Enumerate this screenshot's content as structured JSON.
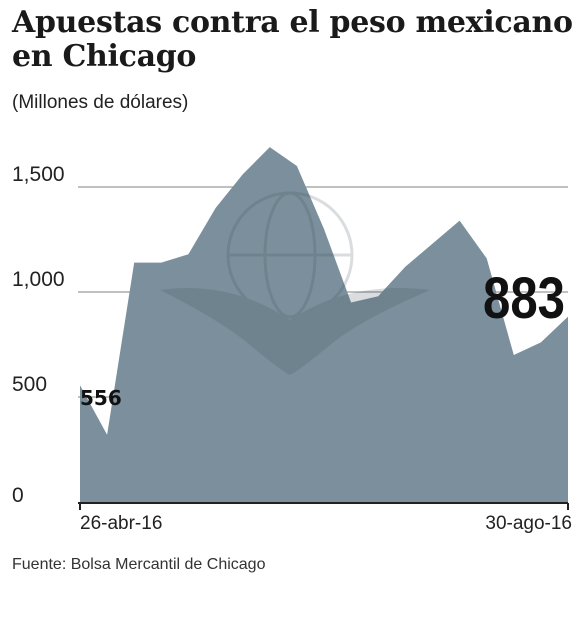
{
  "title": "Apuestas contra el peso mexicano en Chicago",
  "subtitle": "(Millones de dólares)",
  "source": "Fuente: Bolsa Mercantil de Chicago",
  "colors": {
    "area": "#7b909c",
    "grid": "#9a9a9a",
    "axis": "#222222"
  },
  "chart_data": {
    "type": "area",
    "title": "Apuestas contra el peso mexicano en Chicago",
    "ylabel": "(Millones de dólares)",
    "ylim": [
      0,
      1800
    ],
    "yticks": [
      0,
      500,
      1000,
      1500
    ],
    "ytick_labels": [
      "0",
      "500",
      "1,000",
      "1,500"
    ],
    "x_tick_labels": [
      "26-abr-16",
      "30-ago-16"
    ],
    "x": [
      "26-abr-16",
      "03-may-16",
      "10-may-16",
      "17-may-16",
      "24-may-16",
      "31-may-16",
      "07-jun-16",
      "14-jun-16",
      "21-jun-16",
      "28-jun-16",
      "05-jul-16",
      "12-jul-16",
      "19-jul-16",
      "26-jul-16",
      "02-ago-16",
      "09-ago-16",
      "16-ago-16",
      "23-ago-16",
      "30-ago-16"
    ],
    "values": [
      556,
      320,
      1140,
      1140,
      1180,
      1400,
      1560,
      1690,
      1600,
      1300,
      950,
      980,
      1120,
      1230,
      1340,
      1160,
      700,
      760,
      883
    ],
    "start_label": "556",
    "end_label": "883",
    "grid": true
  }
}
